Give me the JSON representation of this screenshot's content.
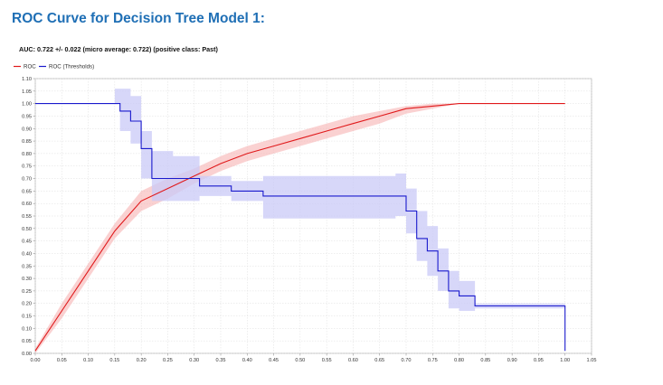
{
  "page": {
    "title": "ROC Curve for Decision Tree Model 1:"
  },
  "chart_data": {
    "type": "line",
    "subtitle": "AUC: 0.722 +/- 0.022 (micro average: 0.722) (positive class: Past)",
    "xlabel": "",
    "ylabel": "",
    "xlim": [
      0.0,
      1.05
    ],
    "ylim": [
      0.0,
      1.1
    ],
    "grid": true,
    "legend_position": "top-left",
    "x_ticks": [
      "0.00",
      "0.05",
      "0.10",
      "0.15",
      "0.20",
      "0.25",
      "0.30",
      "0.35",
      "0.40",
      "0.45",
      "0.50",
      "0.55",
      "0.60",
      "0.65",
      "0.70",
      "0.75",
      "0.80",
      "0.85",
      "0.90",
      "0.95",
      "1.00",
      "1.05"
    ],
    "y_ticks": [
      "0.00",
      "0.05",
      "0.10",
      "0.15",
      "0.20",
      "0.25",
      "0.30",
      "0.35",
      "0.40",
      "0.45",
      "0.50",
      "0.55",
      "0.60",
      "0.65",
      "0.70",
      "0.75",
      "0.80",
      "0.85",
      "0.90",
      "0.95",
      "1.00",
      "1.05",
      "1.10"
    ],
    "series": [
      {
        "name": "ROC",
        "color": "#e0191b",
        "band_color": "#f6b3b3",
        "x": [
          0.0,
          0.05,
          0.1,
          0.15,
          0.2,
          0.25,
          0.3,
          0.35,
          0.4,
          0.45,
          0.5,
          0.55,
          0.6,
          0.65,
          0.7,
          0.75,
          0.8,
          0.85,
          0.9,
          0.95,
          1.0
        ],
        "y": [
          0.01,
          0.17,
          0.33,
          0.49,
          0.61,
          0.66,
          0.71,
          0.76,
          0.8,
          0.83,
          0.86,
          0.89,
          0.92,
          0.95,
          0.98,
          0.99,
          1.0,
          1.0,
          1.0,
          1.0,
          1.0
        ],
        "lower": [
          0.0,
          0.14,
          0.3,
          0.46,
          0.57,
          0.62,
          0.68,
          0.73,
          0.77,
          0.8,
          0.83,
          0.86,
          0.89,
          0.92,
          0.96,
          0.98,
          1.0,
          1.0,
          1.0,
          1.0,
          1.0
        ],
        "upper": [
          0.02,
          0.2,
          0.36,
          0.52,
          0.65,
          0.7,
          0.74,
          0.79,
          0.83,
          0.86,
          0.89,
          0.92,
          0.95,
          0.97,
          0.99,
          1.0,
          1.0,
          1.0,
          1.0,
          1.0,
          1.0
        ]
      },
      {
        "name": "ROC (Thresholds)",
        "color": "#1a1acd",
        "band_color": "#c9c9f7",
        "x": [
          0.0,
          0.15,
          0.16,
          0.18,
          0.2,
          0.22,
          0.26,
          0.31,
          0.37,
          0.43,
          0.68,
          0.7,
          0.72,
          0.74,
          0.76,
          0.78,
          0.8,
          0.83,
          0.99,
          1.0
        ],
        "y": [
          1.0,
          1.0,
          0.97,
          0.93,
          0.82,
          0.7,
          0.7,
          0.67,
          0.65,
          0.63,
          0.63,
          0.57,
          0.46,
          0.41,
          0.33,
          0.25,
          0.23,
          0.19,
          0.19,
          0.01
        ],
        "lower": [
          1.0,
          1.0,
          0.89,
          0.84,
          0.7,
          0.61,
          0.61,
          0.63,
          0.61,
          0.54,
          0.55,
          0.48,
          0.37,
          0.31,
          0.25,
          0.18,
          0.17,
          0.18,
          0.18,
          0.0
        ],
        "upper": [
          1.0,
          1.06,
          1.06,
          1.03,
          0.89,
          0.81,
          0.79,
          0.71,
          0.69,
          0.71,
          0.72,
          0.66,
          0.57,
          0.51,
          0.42,
          0.33,
          0.29,
          0.2,
          0.2,
          0.01
        ]
      }
    ]
  }
}
